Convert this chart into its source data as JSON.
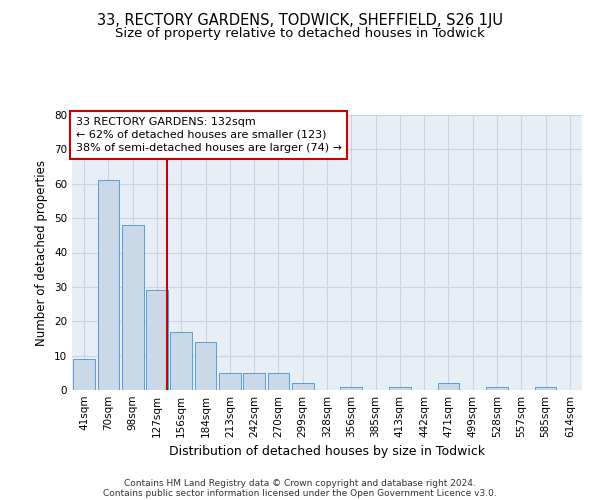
{
  "title1": "33, RECTORY GARDENS, TODWICK, SHEFFIELD, S26 1JU",
  "title2": "Size of property relative to detached houses in Todwick",
  "xlabel": "Distribution of detached houses by size in Todwick",
  "ylabel": "Number of detached properties",
  "bin_labels": [
    "41sqm",
    "70sqm",
    "98sqm",
    "127sqm",
    "156sqm",
    "184sqm",
    "213sqm",
    "242sqm",
    "270sqm",
    "299sqm",
    "328sqm",
    "356sqm",
    "385sqm",
    "413sqm",
    "442sqm",
    "471sqm",
    "499sqm",
    "528sqm",
    "557sqm",
    "585sqm",
    "614sqm"
  ],
  "bar_values": [
    9,
    61,
    48,
    29,
    17,
    14,
    5,
    5,
    5,
    2,
    0,
    1,
    0,
    1,
    0,
    2,
    0,
    1,
    0,
    1,
    0
  ],
  "bar_color": "#c9d9e8",
  "bar_edge_color": "#5b9bd5",
  "annotation_line1": "33 RECTORY GARDENS: 132sqm",
  "annotation_line2": "← 62% of detached houses are smaller (123)",
  "annotation_line3": "38% of semi-detached houses are larger (74) →",
  "annotation_box_color": "#ffffff",
  "annotation_box_edge_color": "#cc0000",
  "red_line_x": 3.42,
  "red_line_color": "#cc0000",
  "footer_line1": "Contains HM Land Registry data © Crown copyright and database right 2024.",
  "footer_line2": "Contains public sector information licensed under the Open Government Licence v3.0.",
  "ylim": [
    0,
    80
  ],
  "yticks": [
    0,
    10,
    20,
    30,
    40,
    50,
    60,
    70,
    80
  ],
  "grid_color": "#c8d4e4",
  "background_color": "#e8eef6",
  "title1_fontsize": 10.5,
  "title2_fontsize": 9.5,
  "xlabel_fontsize": 9,
  "ylabel_fontsize": 8.5,
  "tick_fontsize": 7.5,
  "ann_fontsize": 8,
  "footer_fontsize": 6.5
}
